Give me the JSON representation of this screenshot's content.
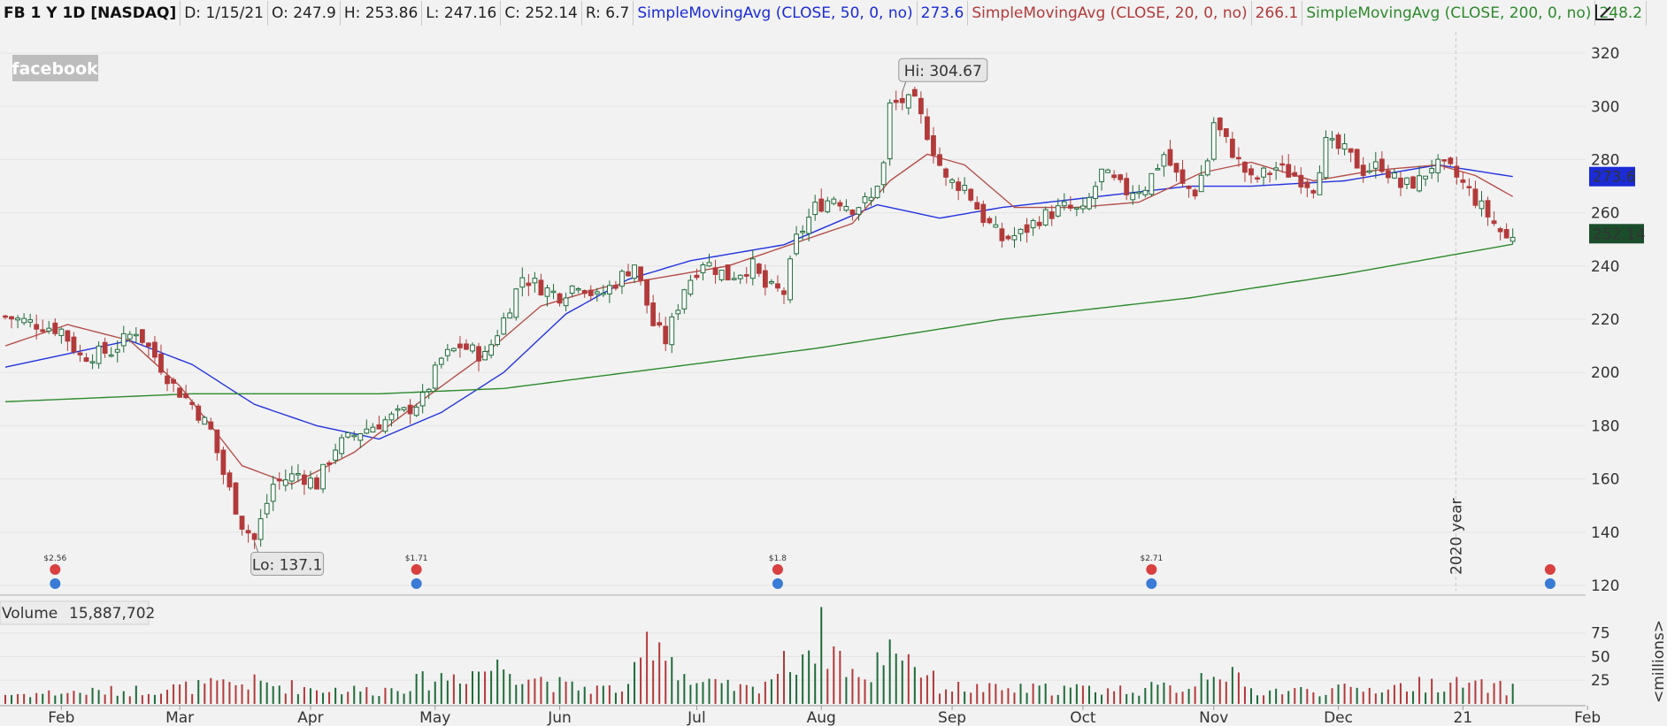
{
  "header": {
    "symbol": "FB 1 Y 1D [NASDAQ]",
    "date": "D: 1/15/21",
    "open": "O: 247.9",
    "high": "H: 253.86",
    "low": "L: 247.16",
    "close": "C: 252.14",
    "range": "R: 6.7",
    "sma50_label": "SimpleMovingAvg (CLOSE, 50, 0, no)",
    "sma50_value": "273.6",
    "sma20_label": "SimpleMovingAvg (CLOSE, 20, 0, no)",
    "sma20_value": "266.1",
    "sma200_label": "SimpleMovingAvg (CLOSE, 200, 0, no)",
    "sma200_value": "248.2"
  },
  "logo_text": "facebook",
  "annotations": {
    "hi_label": "Hi: 304.67",
    "lo_label": "Lo: 137.1",
    "year_marker": "2020 year"
  },
  "price_tags": {
    "sma50": "273.6",
    "close": "252.14"
  },
  "dividends": [
    "$2.56",
    "$1.71",
    "$1.8",
    "$2.71"
  ],
  "volume": {
    "label": "Volume",
    "value": "15,887,702",
    "unit_label": "<millions>"
  },
  "colors": {
    "up": "#1f6b3a",
    "down": "#b23a3a",
    "sma50": "#2233dd",
    "sma20": "#b5504a",
    "sma200": "#2d8a2d",
    "sma50_tag": "#1b2bd6",
    "close_tag": "#1b4d2b"
  },
  "chart_data": {
    "type": "candlestick",
    "price_axis": {
      "ticks": [
        120,
        140,
        160,
        180,
        200,
        220,
        240,
        260,
        280,
        300,
        320
      ],
      "range": [
        118,
        328
      ]
    },
    "volume_axis": {
      "ticks": [
        25,
        50,
        75
      ],
      "unit": "<millions>",
      "range": [
        0,
        85
      ]
    },
    "x_labels": [
      "Feb",
      "Mar",
      "Apr",
      "May",
      "Jun",
      "Jul",
      "Aug",
      "Sep",
      "Oct",
      "Nov",
      "Dec",
      "21",
      "Feb"
    ],
    "x_label_index": [
      9,
      28,
      49,
      69,
      89,
      111,
      131,
      152,
      173,
      194,
      214,
      234,
      254
    ],
    "bar_count": 254,
    "price_control_points": [
      [
        0,
        221
      ],
      [
        9,
        216
      ],
      [
        12,
        206
      ],
      [
        17,
        208
      ],
      [
        21,
        216
      ],
      [
        24,
        206
      ],
      [
        27,
        195
      ],
      [
        30,
        188
      ],
      [
        33,
        178
      ],
      [
        35,
        162
      ],
      [
        38,
        143
      ],
      [
        40,
        137.1
      ],
      [
        43,
        158
      ],
      [
        47,
        162
      ],
      [
        50,
        158
      ],
      [
        53,
        172
      ],
      [
        57,
        178
      ],
      [
        61,
        182
      ],
      [
        64,
        185
      ],
      [
        67,
        190
      ],
      [
        70,
        205
      ],
      [
        73,
        210
      ],
      [
        77,
        206
      ],
      [
        80,
        220
      ],
      [
        83,
        236
      ],
      [
        86,
        232
      ],
      [
        89,
        229
      ],
      [
        92,
        234
      ],
      [
        95,
        228
      ],
      [
        98,
        234
      ],
      [
        101,
        241
      ],
      [
        104,
        218
      ],
      [
        106,
        212
      ],
      [
        109,
        232
      ],
      [
        112,
        242
      ],
      [
        116,
        236
      ],
      [
        120,
        240
      ],
      [
        122,
        232
      ],
      [
        125,
        230
      ],
      [
        127,
        250
      ],
      [
        130,
        262
      ],
      [
        133,
        266
      ],
      [
        136,
        262
      ],
      [
        139,
        265
      ],
      [
        141,
        278
      ],
      [
        142,
        300
      ],
      [
        144,
        302
      ],
      [
        146,
        301
      ],
      [
        148,
        290
      ],
      [
        151,
        272
      ],
      [
        154,
        270
      ],
      [
        157,
        258
      ],
      [
        160,
        250
      ],
      [
        163,
        252
      ],
      [
        166,
        258
      ],
      [
        170,
        262
      ],
      [
        173,
        260
      ],
      [
        176,
        275
      ],
      [
        180,
        268
      ],
      [
        183,
        270
      ],
      [
        186,
        282
      ],
      [
        189,
        270
      ],
      [
        191,
        268
      ],
      [
        193,
        280
      ],
      [
        194,
        294
      ],
      [
        197,
        283
      ],
      [
        200,
        272
      ],
      [
        204,
        277
      ],
      [
        207,
        274
      ],
      [
        210,
        270
      ],
      [
        212,
        286
      ],
      [
        215,
        283
      ],
      [
        218,
        276
      ],
      [
        221,
        278
      ],
      [
        224,
        270
      ],
      [
        227,
        272
      ],
      [
        229,
        278
      ],
      [
        232,
        276
      ],
      [
        235,
        268
      ],
      [
        237,
        262
      ],
      [
        239,
        256
      ],
      [
        241,
        250
      ],
      [
        242,
        252.14
      ]
    ],
    "series": [
      {
        "name": "SimpleMovingAvg (CLOSE, 50, 0, no)",
        "points": [
          [
            0,
            202
          ],
          [
            20,
            212
          ],
          [
            30,
            203
          ],
          [
            40,
            188
          ],
          [
            50,
            180
          ],
          [
            60,
            175
          ],
          [
            70,
            185
          ],
          [
            80,
            200
          ],
          [
            90,
            222
          ],
          [
            100,
            235
          ],
          [
            110,
            242
          ],
          [
            125,
            248
          ],
          [
            140,
            263
          ],
          [
            150,
            258
          ],
          [
            160,
            262
          ],
          [
            175,
            266
          ],
          [
            190,
            270
          ],
          [
            200,
            270
          ],
          [
            215,
            272
          ],
          [
            230,
            278
          ],
          [
            242,
            273.6
          ]
        ]
      },
      {
        "name": "SimpleMovingAvg (CLOSE, 20, 0, no)",
        "points": [
          [
            0,
            210
          ],
          [
            10,
            218
          ],
          [
            20,
            212
          ],
          [
            28,
            195
          ],
          [
            38,
            165
          ],
          [
            46,
            158
          ],
          [
            56,
            170
          ],
          [
            66,
            188
          ],
          [
            76,
            205
          ],
          [
            86,
            225
          ],
          [
            96,
            232
          ],
          [
            106,
            236
          ],
          [
            116,
            240
          ],
          [
            126,
            248
          ],
          [
            136,
            256
          ],
          [
            142,
            272
          ],
          [
            148,
            282
          ],
          [
            154,
            278
          ],
          [
            162,
            262
          ],
          [
            172,
            262
          ],
          [
            182,
            264
          ],
          [
            192,
            275
          ],
          [
            200,
            279
          ],
          [
            210,
            272
          ],
          [
            220,
            276
          ],
          [
            230,
            278
          ],
          [
            236,
            274
          ],
          [
            242,
            266.1
          ]
        ]
      },
      {
        "name": "SimpleMovingAvg (CLOSE, 200, 0, no)",
        "points": [
          [
            0,
            189
          ],
          [
            30,
            192
          ],
          [
            60,
            192
          ],
          [
            80,
            194
          ],
          [
            100,
            200
          ],
          [
            130,
            209
          ],
          [
            160,
            220
          ],
          [
            190,
            228
          ],
          [
            215,
            237
          ],
          [
            242,
            248.2
          ]
        ]
      }
    ],
    "volume_control_points": [
      [
        0,
        10
      ],
      [
        20,
        14
      ],
      [
        30,
        18
      ],
      [
        40,
        22
      ],
      [
        50,
        16
      ],
      [
        60,
        14
      ],
      [
        70,
        28
      ],
      [
        80,
        40
      ],
      [
        90,
        18
      ],
      [
        100,
        15
      ],
      [
        104,
        78
      ],
      [
        110,
        22
      ],
      [
        120,
        15
      ],
      [
        126,
        45
      ],
      [
        131,
        72
      ],
      [
        138,
        20
      ],
      [
        142,
        70
      ],
      [
        150,
        18
      ],
      [
        160,
        15
      ],
      [
        170,
        16
      ],
      [
        180,
        15
      ],
      [
        190,
        18
      ],
      [
        194,
        42
      ],
      [
        200,
        14
      ],
      [
        210,
        14
      ],
      [
        220,
        16
      ],
      [
        230,
        22
      ],
      [
        242,
        15.9
      ]
    ],
    "dividend_bar_index": [
      8,
      66,
      124,
      184
    ],
    "hi": 304.67,
    "lo": 137.1
  }
}
